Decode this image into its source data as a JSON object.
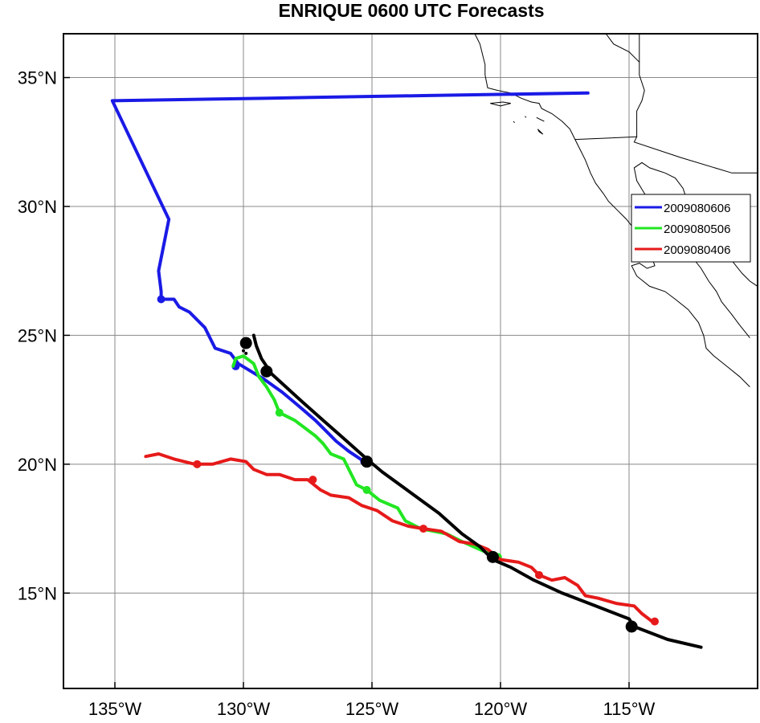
{
  "title": "ENRIQUE 0600 UTC Forecasts",
  "chart_data": {
    "type": "map-tracks",
    "title": "ENRIQUE 0600 UTC Forecasts",
    "x_axis": {
      "range": [
        -137,
        -110
      ],
      "ticks": [
        -135,
        -130,
        -125,
        -120,
        -115
      ],
      "tick_labels": [
        "135°W",
        "130°W",
        "125°W",
        "120°W",
        "115°W"
      ]
    },
    "y_axis": {
      "range": [
        11.3,
        36.7
      ],
      "ticks": [
        15,
        20,
        25,
        30,
        35
      ],
      "tick_labels": [
        "15°N",
        "20°N",
        "25°N",
        "30°N",
        "35°N"
      ]
    },
    "grid": true,
    "legend_placement": "right",
    "legend": [
      {
        "label": "2009080606",
        "color": "#1a1ae6"
      },
      {
        "label": "2009080506",
        "color": "#22e622"
      },
      {
        "label": "2009080406",
        "color": "#e61a1a"
      }
    ],
    "series": [
      {
        "name": "2009080606",
        "color": "#1a1ae6",
        "points": [
          [
            -116.6,
            34.4
          ],
          [
            -123,
            34.3
          ],
          [
            -129,
            34.2
          ],
          [
            -135.1,
            34.1
          ],
          [
            -132.9,
            29.5
          ],
          [
            -133.3,
            27.5
          ],
          [
            -133.2,
            26.7
          ],
          [
            -133.2,
            26.4
          ],
          [
            -132.7,
            26.4
          ],
          [
            -132.5,
            26.1
          ],
          [
            -132.1,
            25.9
          ],
          [
            -131.5,
            25.3
          ],
          [
            -131.1,
            24.5
          ],
          [
            -130.5,
            24.3
          ],
          [
            -130.2,
            23.9
          ],
          [
            -129.7,
            23.6
          ],
          [
            -129.2,
            23.3
          ],
          [
            -128.5,
            22.8
          ],
          [
            -127.9,
            22.3
          ],
          [
            -127.2,
            21.7
          ],
          [
            -126.8,
            21.3
          ],
          [
            -126.4,
            20.9
          ],
          [
            -125.9,
            20.5
          ],
          [
            -125.3,
            20.1
          ]
        ],
        "markers": [
          [
            -133.2,
            26.4
          ],
          [
            -130.3,
            23.8
          ],
          [
            -125.3,
            20.1
          ]
        ]
      },
      {
        "name": "2009080506",
        "color": "#22e622",
        "points": [
          [
            -130.4,
            23.8
          ],
          [
            -130.3,
            24.1
          ],
          [
            -130,
            24.2
          ],
          [
            -129.6,
            23.9
          ],
          [
            -129.4,
            23.4
          ],
          [
            -129.1,
            23
          ],
          [
            -128.8,
            22.5
          ],
          [
            -128.6,
            22
          ],
          [
            -128,
            21.7
          ],
          [
            -127.2,
            21.1
          ],
          [
            -126.9,
            20.8
          ],
          [
            -126.6,
            20.4
          ],
          [
            -126.1,
            20.2
          ],
          [
            -125.6,
            19.2
          ],
          [
            -125.2,
            19
          ],
          [
            -124.7,
            18.6
          ],
          [
            -124,
            18.3
          ],
          [
            -123.7,
            17.8
          ],
          [
            -123.1,
            17.5
          ],
          [
            -122.1,
            17.3
          ],
          [
            -121.5,
            17
          ],
          [
            -120.6,
            16.6
          ],
          [
            -120.1,
            16.4
          ]
        ],
        "markers": [
          [
            -128.6,
            22
          ],
          [
            -125.2,
            19
          ],
          [
            -120.1,
            16.4
          ]
        ]
      },
      {
        "name": "2009080406",
        "color": "#e61a1a",
        "points": [
          [
            -133.8,
            20.3
          ],
          [
            -133.3,
            20.4
          ],
          [
            -132.7,
            20.2
          ],
          [
            -131.9,
            20
          ],
          [
            -131.2,
            20
          ],
          [
            -130.5,
            20.2
          ],
          [
            -129.9,
            20.1
          ],
          [
            -129.6,
            19.8
          ],
          [
            -129.1,
            19.6
          ],
          [
            -128.6,
            19.6
          ],
          [
            -128,
            19.4
          ],
          [
            -127.5,
            19.4
          ],
          [
            -127,
            19
          ],
          [
            -126.6,
            18.8
          ],
          [
            -125.9,
            18.7
          ],
          [
            -125.4,
            18.4
          ],
          [
            -124.8,
            18.2
          ],
          [
            -124.2,
            17.8
          ],
          [
            -123.6,
            17.6
          ],
          [
            -123,
            17.5
          ],
          [
            -122.3,
            17.4
          ],
          [
            -121.6,
            17
          ],
          [
            -121,
            16.9
          ],
          [
            -120.5,
            16.7
          ],
          [
            -120,
            16.3
          ],
          [
            -119.3,
            16.2
          ],
          [
            -118.8,
            16
          ],
          [
            -118.5,
            15.7
          ],
          [
            -118,
            15.5
          ],
          [
            -117.5,
            15.6
          ],
          [
            -117,
            15.3
          ],
          [
            -116.7,
            14.9
          ],
          [
            -116.2,
            14.8
          ],
          [
            -115.5,
            14.6
          ],
          [
            -114.8,
            14.5
          ],
          [
            -114.5,
            14.2
          ],
          [
            -114.1,
            13.9
          ]
        ],
        "markers": [
          [
            -131.8,
            20
          ],
          [
            -127.3,
            19.4
          ],
          [
            -123,
            17.5
          ],
          [
            -118.5,
            15.7
          ],
          [
            -114,
            13.9
          ]
        ]
      },
      {
        "name": "",
        "color": "#000000",
        "points": [
          [
            -129.6,
            25
          ],
          [
            -129.5,
            24.6
          ],
          [
            -129.3,
            24.1
          ],
          [
            -128.9,
            23.5
          ],
          [
            -127.8,
            22.5
          ],
          [
            -126.9,
            21.7
          ],
          [
            -126.1,
            21
          ],
          [
            -125.2,
            20.2
          ],
          [
            -124.6,
            19.7
          ],
          [
            -123.5,
            18.9
          ],
          [
            -122.4,
            18.1
          ],
          [
            -121.5,
            17.3
          ],
          [
            -120.8,
            16.8
          ],
          [
            -120.3,
            16.3
          ],
          [
            -119.6,
            16
          ],
          [
            -118.7,
            15.5
          ],
          [
            -117.6,
            15
          ],
          [
            -116.3,
            14.5
          ],
          [
            -115,
            14
          ],
          [
            -114.8,
            13.7
          ],
          [
            -113.5,
            13.2
          ],
          [
            -112.2,
            12.9
          ]
        ],
        "markers": [
          [
            -129.9,
            24.7
          ],
          [
            -129.1,
            23.6
          ],
          [
            -125.2,
            20.1
          ],
          [
            -120.3,
            16.4
          ],
          [
            -114.9,
            13.7
          ]
        ],
        "small_markers": [
          [
            -129.9,
            24.3
          ],
          [
            -130,
            24.4
          ]
        ]
      }
    ],
    "coastlines": [
      [
        [
          -121,
          36.7
        ],
        [
          -120.8,
          36.3
        ],
        [
          -120.7,
          35.9
        ],
        [
          -120.6,
          35.5
        ],
        [
          -120.6,
          35.1
        ],
        [
          -120.5,
          34.6
        ],
        [
          -120.1,
          34.5
        ],
        [
          -119.6,
          34.4
        ],
        [
          -119.2,
          34.2
        ],
        [
          -118.8,
          34.05
        ],
        [
          -118.5,
          34
        ],
        [
          -118.4,
          33.8
        ],
        [
          -118.2,
          33.7
        ],
        [
          -118,
          33.6
        ],
        [
          -117.6,
          33.3
        ],
        [
          -117.3,
          33
        ],
        [
          -117.1,
          32.6
        ],
        [
          -116.9,
          32.2
        ],
        [
          -116.7,
          31.8
        ],
        [
          -116.5,
          31.3
        ],
        [
          -116.3,
          30.9
        ],
        [
          -116,
          30.5
        ],
        [
          -115.8,
          30.2
        ],
        [
          -115.5,
          29.9
        ],
        [
          -115.1,
          29.5
        ],
        [
          -114.7,
          29
        ],
        [
          -114.4,
          28.5
        ],
        [
          -114.1,
          28
        ],
        [
          -114,
          27.7
        ],
        [
          -114.3,
          27.6
        ],
        [
          -114.6,
          27.8
        ],
        [
          -114.9,
          27.7
        ],
        [
          -114.7,
          27.3
        ],
        [
          -114.2,
          26.9
        ],
        [
          -113.6,
          26.7
        ],
        [
          -113.2,
          26.4
        ],
        [
          -112.7,
          26
        ],
        [
          -112.3,
          25.5
        ],
        [
          -112.1,
          25
        ],
        [
          -112,
          24.5
        ],
        [
          -111.7,
          24.2
        ],
        [
          -111.2,
          23.8
        ],
        [
          -110.7,
          23.4
        ],
        [
          -110.3,
          23
        ]
      ],
      [
        [
          -110.3,
          24.9
        ],
        [
          -110.7,
          25.4
        ],
        [
          -111,
          25.8
        ],
        [
          -111.4,
          26.3
        ],
        [
          -111.6,
          26.7
        ],
        [
          -111.9,
          27.1
        ],
        [
          -112.2,
          27.6
        ],
        [
          -112.6,
          28.1
        ],
        [
          -112.9,
          28.6
        ],
        [
          -113.3,
          29.1
        ],
        [
          -113.6,
          29.5
        ],
        [
          -114,
          30
        ],
        [
          -114.4,
          30.5
        ],
        [
          -114.7,
          31
        ],
        [
          -114.8,
          31.5
        ],
        [
          -114.5,
          31.7
        ],
        [
          -114.2,
          31.5
        ],
        [
          -113.9,
          31.4
        ],
        [
          -113.6,
          31.3
        ],
        [
          -113.2,
          31.1
        ],
        [
          -112.9,
          30.7
        ],
        [
          -112.7,
          30.1
        ],
        [
          -112.3,
          29.4
        ],
        [
          -111.9,
          28.9
        ],
        [
          -111.5,
          28.4
        ],
        [
          -111,
          27.9
        ],
        [
          -110.6,
          27.4
        ],
        [
          -110.3,
          27.1
        ],
        [
          -110,
          26.9
        ]
      ],
      [
        [
          -114.6,
          36.7
        ],
        [
          -114.6,
          35.8
        ],
        [
          -114.6,
          35.1
        ],
        [
          -114.4,
          34.5
        ],
        [
          -114.5,
          34.1
        ],
        [
          -114.7,
          33.7
        ],
        [
          -114.7,
          33.3
        ],
        [
          -114.7,
          32.7
        ]
      ],
      [
        [
          -117.1,
          32.6
        ],
        [
          -114.7,
          32.7
        ],
        [
          -114.8,
          32.5
        ],
        [
          -113,
          31.9
        ],
        [
          -111,
          31.3
        ],
        [
          -110,
          31.3
        ]
      ],
      [
        [
          -115.9,
          36.7
        ],
        [
          -115.6,
          36.3
        ],
        [
          -115,
          36
        ],
        [
          -114.6,
          35.6
        ]
      ]
    ],
    "islands": [
      [
        [
          -120.4,
          34
        ],
        [
          -119.9,
          34.05
        ],
        [
          -119.6,
          34
        ],
        [
          -120,
          33.9
        ],
        [
          -120.4,
          34
        ]
      ],
      [
        [
          -118.6,
          33.45
        ],
        [
          -118.3,
          33.3
        ],
        [
          -118.5,
          33.4
        ],
        [
          -118.6,
          33.45
        ]
      ],
      [
        [
          -118.55,
          33
        ],
        [
          -118.35,
          32.8
        ],
        [
          -118.5,
          32.9
        ],
        [
          -118.55,
          33
        ]
      ],
      [
        [
          -119.5,
          33.3
        ],
        [
          -119.45,
          33.25
        ],
        [
          -119.5,
          33.3
        ]
      ],
      [
        [
          -119.05,
          33.5
        ],
        [
          -119.0,
          33.45
        ],
        [
          -119.05,
          33.5
        ]
      ]
    ]
  }
}
